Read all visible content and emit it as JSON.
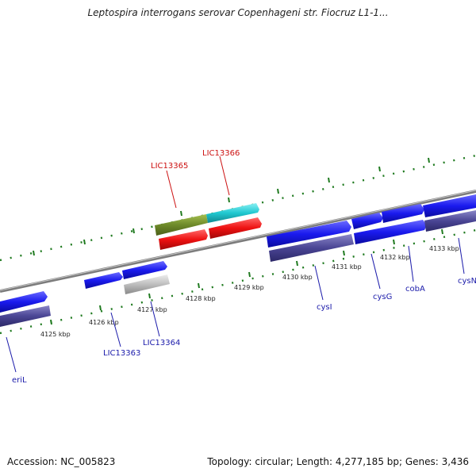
{
  "title": "Leptospira interrogans serovar Copenhageni str. Fiocruz L1-1...",
  "footer": {
    "accession": "Accession: NC_005823",
    "topology": "Topology: circular; Length: 4,277,185 bp; Genes: 3,436"
  },
  "colors": {
    "backbone": "#8c8c8c",
    "tick": "#1f7a1f",
    "forward_gene": "#1a1aee",
    "reverse_gene": "#ee1111",
    "cds_fwd": "#4a4594",
    "cds_rev_a": "#6e8a2a",
    "cds_rev_b": "#20c8d0",
    "pseudo": "#bdbdbd",
    "label_blue": "#1a1aaa",
    "label_red": "#cc1111"
  },
  "tick_labels": [
    "4125 kbp",
    "4126 kbp",
    "4127 kbp",
    "4128 kbp",
    "4129 kbp",
    "4130 kbp",
    "4131 kbp",
    "4132 kbp",
    "4133 kbp"
  ],
  "gene_labels": [
    {
      "name": "LIC13365",
      "strand": "reverse"
    },
    {
      "name": "LIC13366",
      "strand": "reverse"
    },
    {
      "name": "eriL",
      "strand": "forward"
    },
    {
      "name": "LIC13363",
      "strand": "forward"
    },
    {
      "name": "LIC13364",
      "strand": "forward"
    },
    {
      "name": "cysI",
      "strand": "forward"
    },
    {
      "name": "cysG",
      "strand": "forward"
    },
    {
      "name": "cobA",
      "strand": "forward"
    },
    {
      "name": "cysN",
      "strand": "forward"
    }
  ]
}
